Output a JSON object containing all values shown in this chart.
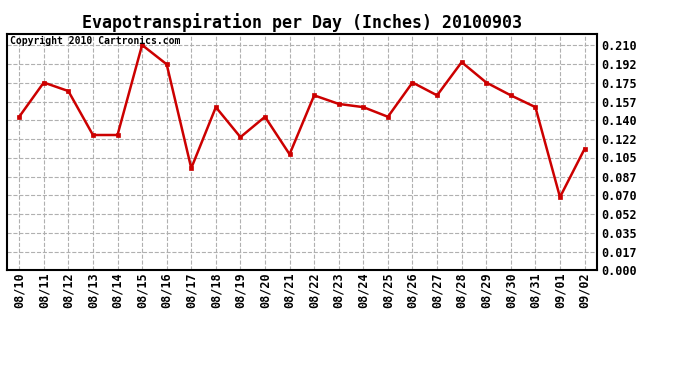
{
  "title": "Evapotranspiration per Day (Inches) 20100903",
  "copyright_text": "Copyright 2010 Cartronics.com",
  "dates": [
    "08/10",
    "08/11",
    "08/12",
    "08/13",
    "08/14",
    "08/15",
    "08/16",
    "08/17",
    "08/18",
    "08/19",
    "08/20",
    "08/21",
    "08/22",
    "08/23",
    "08/24",
    "08/25",
    "08/26",
    "08/27",
    "08/28",
    "08/29",
    "08/30",
    "08/31",
    "09/01",
    "09/02"
  ],
  "values": [
    0.143,
    0.175,
    0.167,
    0.126,
    0.126,
    0.21,
    0.192,
    0.095,
    0.152,
    0.124,
    0.143,
    0.108,
    0.163,
    0.155,
    0.152,
    0.143,
    0.175,
    0.163,
    0.194,
    0.175,
    0.163,
    0.152,
    0.068,
    0.113
  ],
  "line_color": "#cc0000",
  "marker_color": "#cc0000",
  "background_color": "#ffffff",
  "grid_color": "#b0b0b0",
  "yticks": [
    0.0,
    0.017,
    0.035,
    0.052,
    0.07,
    0.087,
    0.105,
    0.122,
    0.14,
    0.157,
    0.175,
    0.192,
    0.21
  ],
  "ylim": [
    0.0,
    0.2205
  ],
  "title_fontsize": 12,
  "copyright_fontsize": 7,
  "tick_fontsize": 8.5
}
